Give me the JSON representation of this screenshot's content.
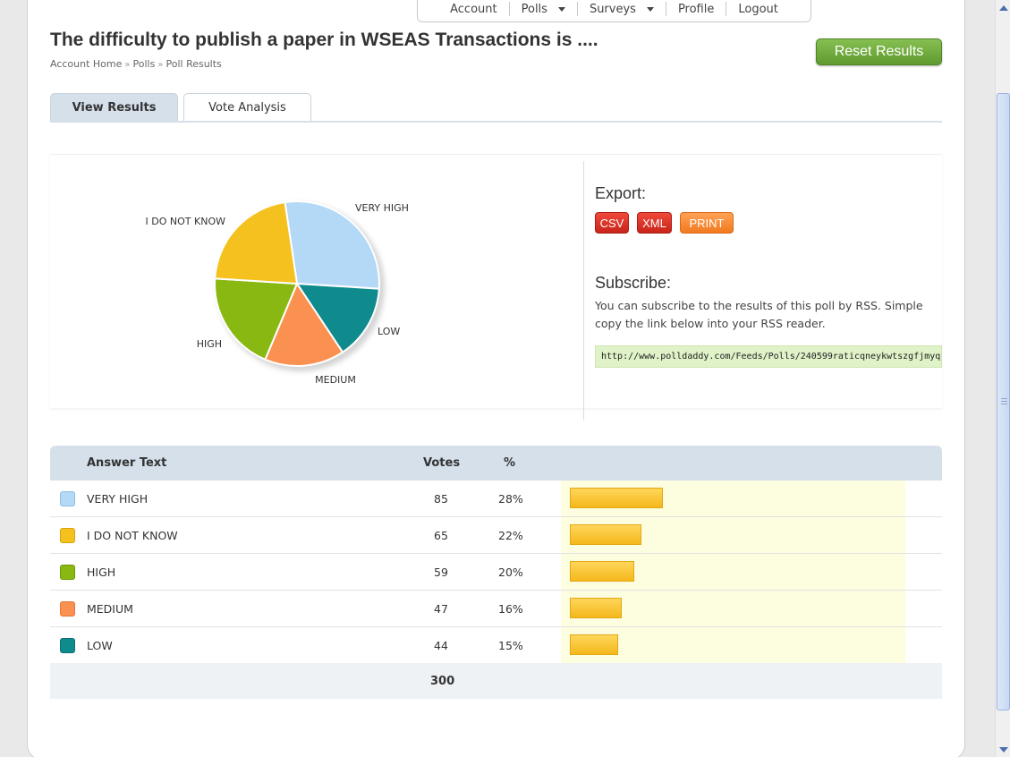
{
  "nav": {
    "items": [
      {
        "label": "Account",
        "dropdown": false
      },
      {
        "label": "Polls",
        "dropdown": true
      },
      {
        "label": "Surveys",
        "dropdown": true
      },
      {
        "label": "Profile",
        "dropdown": false
      },
      {
        "label": "Logout",
        "dropdown": false
      }
    ]
  },
  "page": {
    "title": "The difficulty to publish a paper in WSEAS Transactions is ....",
    "breadcrumb": [
      "Account Home",
      "Polls",
      "Poll Results"
    ],
    "reset_label": "Reset Results"
  },
  "tabs": [
    {
      "label": "View Results",
      "active": true
    },
    {
      "label": "Vote Analysis",
      "active": false
    }
  ],
  "export": {
    "title": "Export:",
    "buttons": [
      "CSV",
      "XML",
      "PRINT"
    ]
  },
  "subscribe": {
    "title": "Subscribe:",
    "text": "You can subscribe to the results of this poll by RSS. Simple copy the link below into your RSS reader.",
    "url": "http://www.polldaddy.com/Feeds/Polls/240599raticqneykwtszgfjmyq"
  },
  "table": {
    "headers": {
      "answer": "Answer Text",
      "votes": "Votes",
      "percent": "%"
    },
    "rows": [
      {
        "answer": "VERY HIGH",
        "votes": "85",
        "percent": "28%",
        "color": "#b3d9f7"
      },
      {
        "answer": "I DO NOT KNOW",
        "votes": "65",
        "percent": "22%",
        "color": "#f5c11e"
      },
      {
        "answer": "HIGH",
        "votes": "59",
        "percent": "20%",
        "color": "#8ab813"
      },
      {
        "answer": "MEDIUM",
        "votes": "47",
        "percent": "16%",
        "color": "#fb9150"
      },
      {
        "answer": "LOW",
        "votes": "44",
        "percent": "15%",
        "color": "#0f8b8d"
      }
    ],
    "total": "300"
  },
  "chart_data": {
    "type": "pie",
    "labels": [
      "VERY HIGH",
      "LOW",
      "MEDIUM",
      "HIGH",
      "I DO NOT KNOW"
    ],
    "values": [
      85,
      44,
      47,
      59,
      65
    ],
    "colors": [
      "#b3d9f7",
      "#0f8b8d",
      "#fb9150",
      "#8ab813",
      "#f5c11e"
    ]
  }
}
